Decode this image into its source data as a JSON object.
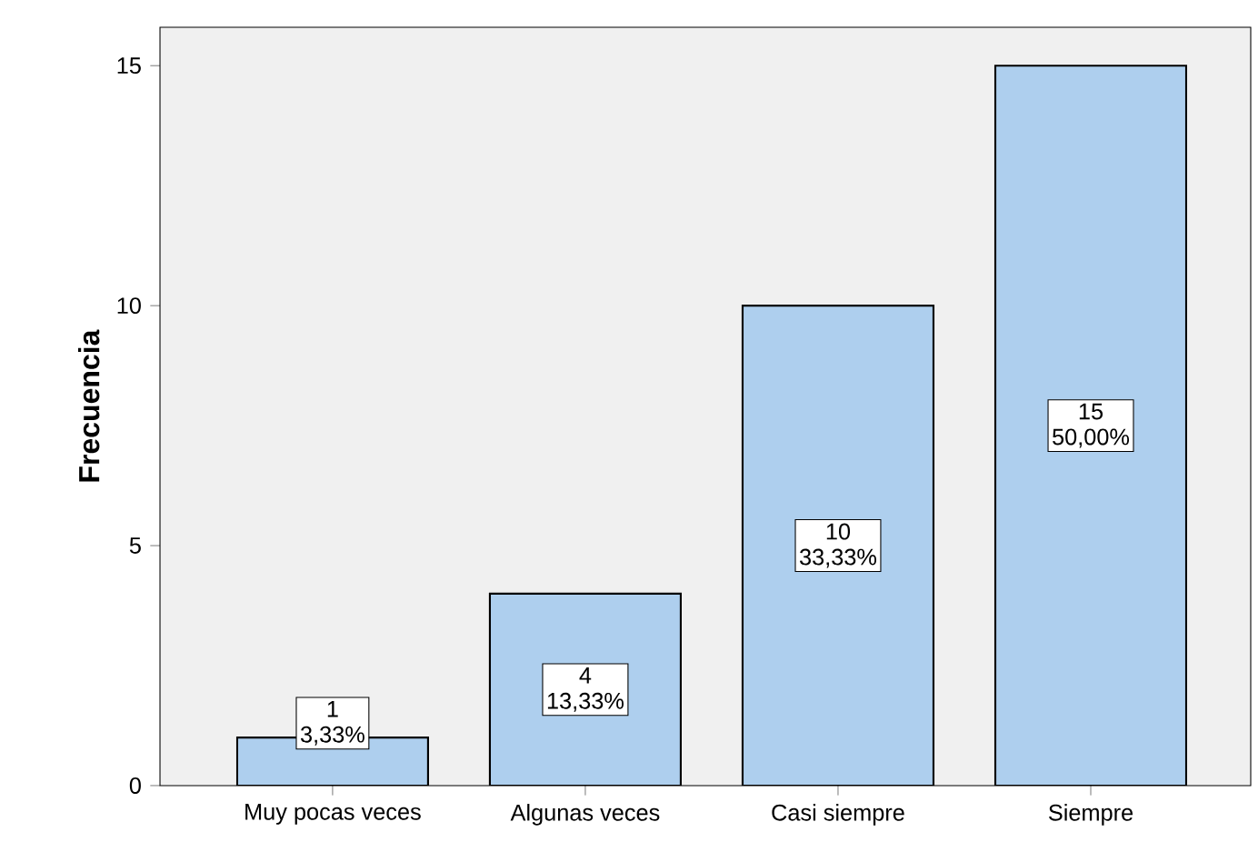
{
  "chart_data": {
    "type": "bar",
    "ylabel": "**Frecuencia**",
    "categories": [
      "Muy pocas veces",
      "Algunas veces",
      "Casi siempre",
      "Siempre"
    ],
    "values": [
      1,
      4,
      10,
      15
    ],
    "color": "#aecfee",
    "value_labels": [
      "1",
      "4",
      "10",
      "15"
    ],
    "annotations": [
      "3,33%",
      "13,33%",
      "33,33%",
      "50,00%"
    ],
    "ylim": [
      0,
      15.8
    ],
    "yticks": [
      0,
      5,
      10,
      15
    ],
    "grid": false
  }
}
